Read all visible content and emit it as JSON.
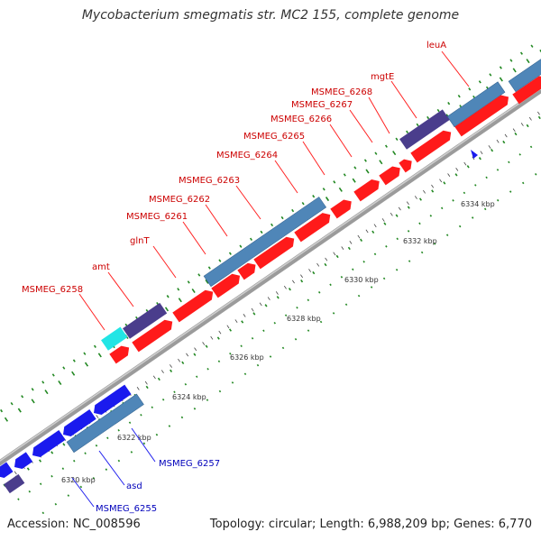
{
  "title": "Mycobacterium smegmatis str. MC2 155, complete genome",
  "footer": {
    "accession": "Accession: NC_008596",
    "summary": "Topology: circular; Length: 6,988,209 bp; Genes: 6,770"
  },
  "colors": {
    "forward_gene": "#ff1a1a",
    "forward_label": "#cc0000",
    "reverse_gene": "#1a1aee",
    "reverse_label": "#0000bb",
    "steelblue_feature": "#4f86b8",
    "purple_feature": "#4a3d8c",
    "cyan_feature": "#22e5e5",
    "backbone": "#999999",
    "gc_dots": "#228822"
  },
  "scale_labels": [
    "6320 kbp",
    "6322 kbp",
    "6324 kbp",
    "6326 kbp",
    "6328 kbp",
    "6330 kbp",
    "6332 kbp",
    "6334 kbp"
  ],
  "forward_labels": [
    "MSMEG_6258",
    "amt",
    "glnT",
    "MSMEG_6261",
    "MSMEG_6262",
    "MSMEG_6263",
    "MSMEG_6264",
    "MSMEG_6265",
    "MSMEG_6266",
    "MSMEG_6267",
    "MSMEG_6268",
    "mgtE",
    "leuA"
  ],
  "reverse_labels": [
    "MSMEG_6257",
    "asd",
    "MSMEG_6255"
  ]
}
